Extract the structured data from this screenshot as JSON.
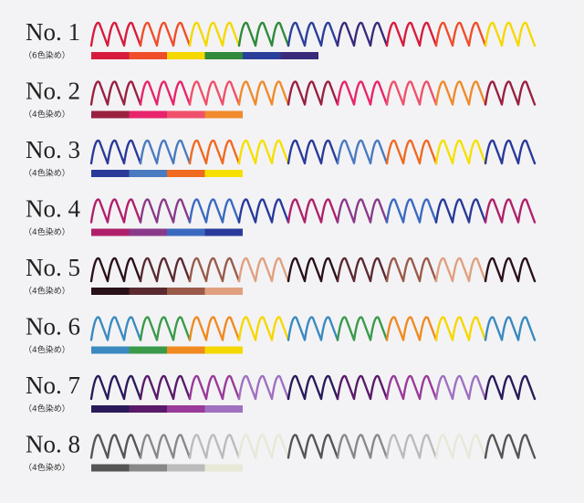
{
  "rows": [
    {
      "label": "No. 1",
      "note": "（6色染め）",
      "colors": [
        "#d81b3c",
        "#f04e2a",
        "#f5d800",
        "#2f8a3a",
        "#2a3f9a",
        "#3a2a7a"
      ]
    },
    {
      "label": "No. 2",
      "note": "（4色染め）",
      "colors": [
        "#9a2040",
        "#e8246c",
        "#f0506a",
        "#f08a2a"
      ]
    },
    {
      "label": "No. 3",
      "note": "（4色染め）",
      "colors": [
        "#2a3a9a",
        "#4a7ac0",
        "#f06a20",
        "#f5e000"
      ]
    },
    {
      "label": "No. 4",
      "note": "（4色染め）",
      "colors": [
        "#b0206a",
        "#8a3a8a",
        "#3a6ac0",
        "#2a3a9a"
      ]
    },
    {
      "label": "No. 5",
      "note": "（4色染め）",
      "colors": [
        "#2a1018",
        "#5a2a30",
        "#9a5a4a",
        "#e0a080"
      ]
    },
    {
      "label": "No. 6",
      "note": "（4色染め）",
      "colors": [
        "#3a8ac0",
        "#3a9a4a",
        "#f08a20",
        "#f5d800"
      ]
    },
    {
      "label": "No. 7",
      "note": "（4色染め）",
      "colors": [
        "#2a1a5a",
        "#5a1a6a",
        "#9a3a9a",
        "#a070c0"
      ]
    },
    {
      "label": "No. 8",
      "note": "（4色染め）",
      "colors": [
        "#555555",
        "#888888",
        "#bbbbbb",
        "#e8e8d8"
      ]
    }
  ]
}
